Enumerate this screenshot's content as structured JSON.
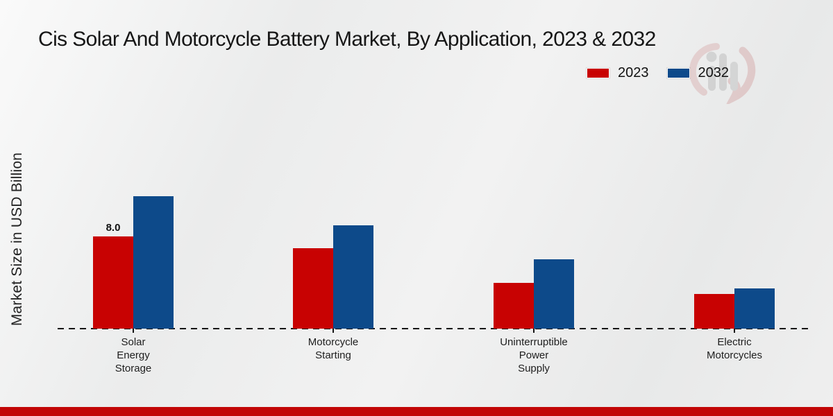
{
  "chart_data": {
    "type": "bar",
    "title": "Cis Solar And Motorcycle Battery Market, By Application, 2023 & 2032",
    "ylabel": "Market Size in USD Billion",
    "xlabel": "",
    "categories": [
      "Solar Energy Storage",
      "Motorcycle Starting",
      "Uninterruptible Power Supply",
      "Electric Motorcycles"
    ],
    "series": [
      {
        "name": "2023",
        "color": "#c80202",
        "values": [
          8.0,
          7.0,
          4.0,
          3.0
        ]
      },
      {
        "name": "2032",
        "color": "#0d4a8a",
        "values": [
          11.5,
          9.0,
          6.0,
          3.5
        ]
      }
    ],
    "ylim": [
      0,
      12
    ],
    "grid": false,
    "legend_position": "top-right",
    "baseline_style": "dashed",
    "value_label": {
      "text": "8.0",
      "series_index": 0,
      "category_index": 0
    }
  },
  "watermark": {
    "icon": "mrfr-logo",
    "bar_color": "#9a9a9a",
    "ring_color": "#c97f7f"
  },
  "footer": {
    "accent_color": "#c20606"
  }
}
